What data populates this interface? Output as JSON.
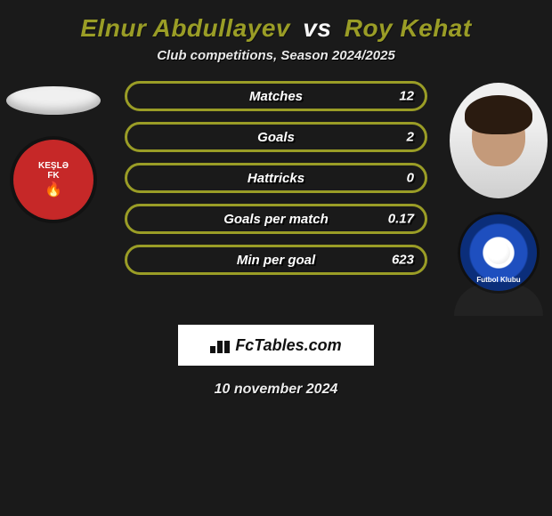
{
  "title": {
    "player1": "Elnur Abdullayev",
    "vs": "vs",
    "player2": "Roy Kehat",
    "player1_color": "#9a9d26",
    "vs_color": "#f7f7f7",
    "player2_color": "#9a9d26"
  },
  "subtitle": "Club competitions, Season 2024/2025",
  "bars": {
    "border_color": "#9a9d26",
    "items": [
      {
        "label": "Matches",
        "left": "",
        "right": "12"
      },
      {
        "label": "Goals",
        "left": "",
        "right": "2"
      },
      {
        "label": "Hattricks",
        "left": "",
        "right": "0"
      },
      {
        "label": "Goals per match",
        "left": "",
        "right": "0.17"
      },
      {
        "label": "Min per goal",
        "left": "",
        "right": "623"
      }
    ]
  },
  "left_club": {
    "name": "KEŞLƏ",
    "sub": "FK",
    "bg": "#c62828"
  },
  "right_club": {
    "ribbon": "Futbol Klubu"
  },
  "brand": {
    "text": "FcTables.com"
  },
  "date": "10 november 2024",
  "colors": {
    "page_bg": "#1a1a1a"
  }
}
